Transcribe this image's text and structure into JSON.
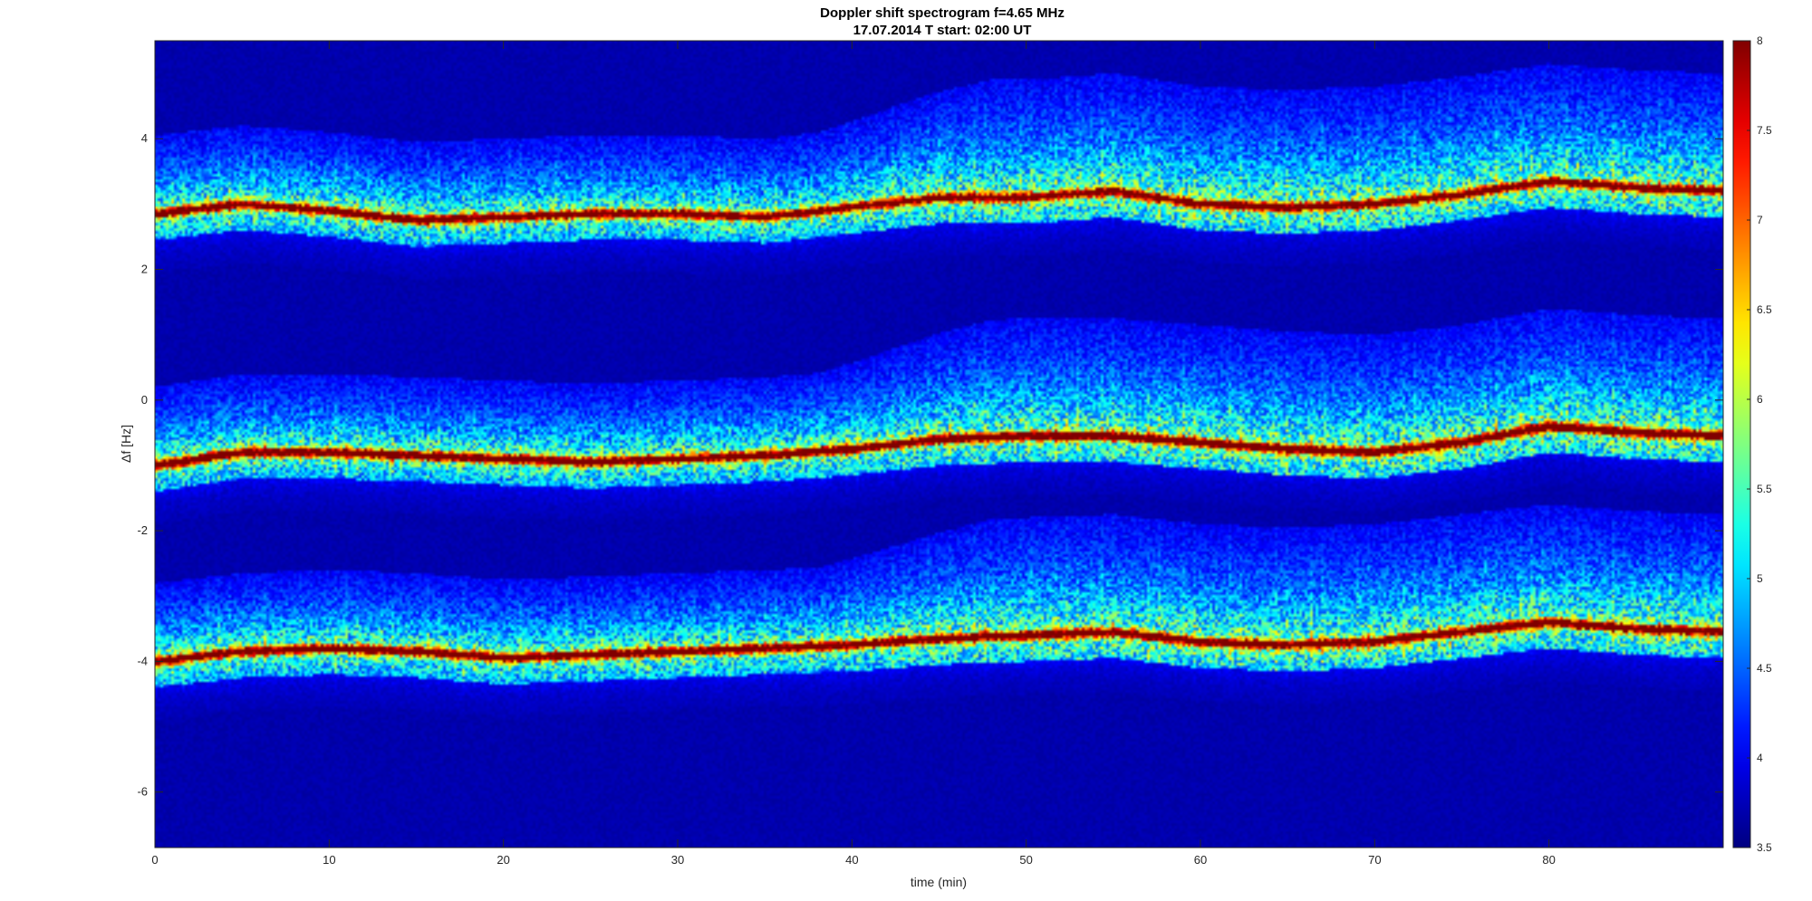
{
  "chart_data": {
    "type": "heatmap",
    "title": "Doppler shift spectrogram f=4.65 MHz",
    "subtitle": "17.07.2014   T start: 02:00 UT",
    "xlabel": "time (min)",
    "ylabel": "Δf [Hz]",
    "xlim": [
      0,
      90
    ],
    "ylim": [
      -6.85,
      5.5
    ],
    "xticks": [
      0,
      10,
      20,
      30,
      40,
      50,
      60,
      70,
      80
    ],
    "yticks": [
      -6,
      -4,
      -2,
      0,
      2,
      4
    ],
    "grid": false,
    "colormap": "jet",
    "clim": [
      3.5,
      8
    ],
    "colorbar_ticks": [
      3.5,
      4,
      4.5,
      5,
      5.5,
      6,
      6.5,
      7,
      7.5,
      8
    ],
    "background_level": 3.7,
    "traces": [
      {
        "x": [
          0,
          5,
          10,
          15,
          20,
          25,
          30,
          35,
          40,
          45,
          50,
          55,
          60,
          65,
          70,
          75,
          80,
          85,
          90
        ],
        "y": [
          2.85,
          3.0,
          2.9,
          2.75,
          2.8,
          2.85,
          2.85,
          2.8,
          2.95,
          3.1,
          3.1,
          3.2,
          3.0,
          2.95,
          3.0,
          3.15,
          3.35,
          3.25,
          3.2
        ],
        "peak_level": 7.3
      },
      {
        "x": [
          0,
          5,
          10,
          15,
          20,
          25,
          30,
          35,
          40,
          45,
          50,
          55,
          60,
          65,
          70,
          75,
          80,
          85,
          90
        ],
        "y": [
          -1.0,
          -0.8,
          -0.8,
          -0.85,
          -0.9,
          -0.95,
          -0.9,
          -0.85,
          -0.75,
          -0.6,
          -0.55,
          -0.55,
          -0.65,
          -0.75,
          -0.8,
          -0.65,
          -0.4,
          -0.5,
          -0.55
        ],
        "peak_level": 7.8
      },
      {
        "x": [
          0,
          5,
          10,
          15,
          20,
          25,
          30,
          35,
          40,
          45,
          50,
          55,
          60,
          65,
          70,
          75,
          80,
          85,
          90
        ],
        "y": [
          -4.0,
          -3.85,
          -3.8,
          -3.85,
          -3.95,
          -3.9,
          -3.85,
          -3.8,
          -3.75,
          -3.65,
          -3.6,
          -3.55,
          -3.7,
          -3.75,
          -3.7,
          -3.55,
          -3.4,
          -3.5,
          -3.55
        ],
        "peak_level": 7.6
      }
    ]
  }
}
